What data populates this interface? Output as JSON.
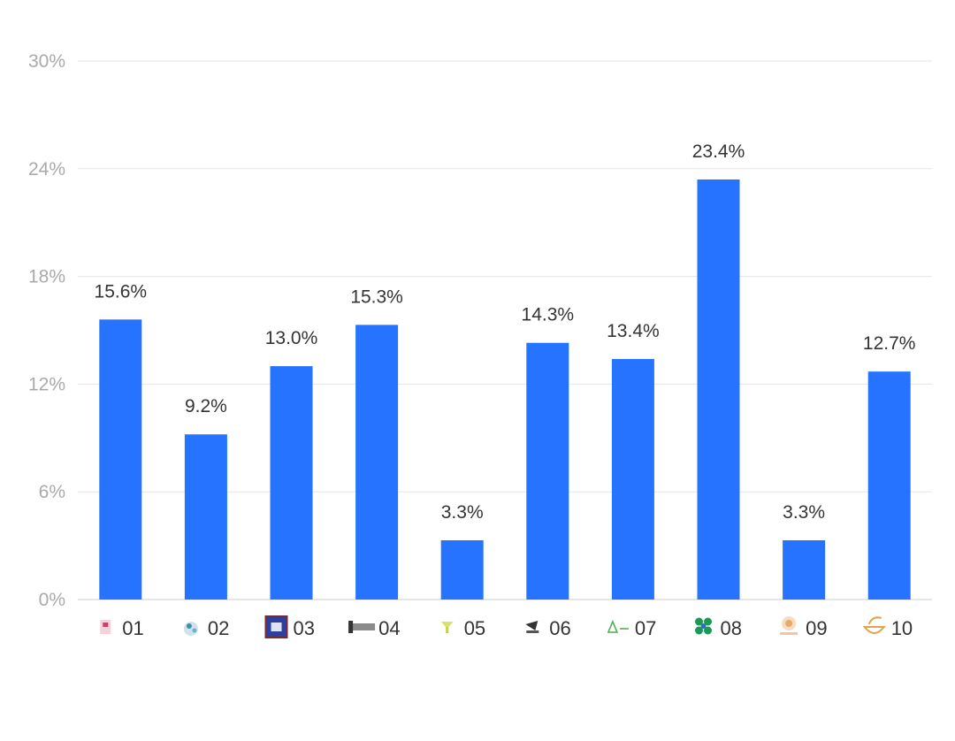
{
  "chart_data": {
    "type": "bar",
    "categories": [
      "01",
      "02",
      "03",
      "04",
      "05",
      "06",
      "07",
      "08",
      "09",
      "10"
    ],
    "values": [
      15.6,
      9.2,
      13.0,
      15.3,
      3.3,
      14.3,
      13.4,
      23.4,
      3.3,
      12.7
    ],
    "data_labels": [
      "15.6%",
      "9.2%",
      "13.0%",
      "15.3%",
      "3.3%",
      "14.3%",
      "13.4%",
      "23.4%",
      "3.3%",
      "12.7%"
    ],
    "yticks": [
      0,
      6,
      12,
      18,
      24,
      30
    ],
    "ytick_labels": [
      "0%",
      "6%",
      "12%",
      "18%",
      "24%",
      "30%"
    ],
    "ylim": [
      0,
      30
    ],
    "grid": true,
    "legend": "none",
    "category_logo_icons": [
      "logo-01-icon",
      "logo-02-icon",
      "logo-03-icon",
      "logo-04-icon",
      "logo-05-icon",
      "logo-06-icon",
      "logo-07-icon",
      "logo-08-icon",
      "logo-09-icon",
      "logo-10-icon"
    ],
    "colors": {
      "bar": "#2673FF",
      "grid": "#E6E6E6",
      "tick_text": "#AAAAAA",
      "label_text": "#333333"
    }
  }
}
